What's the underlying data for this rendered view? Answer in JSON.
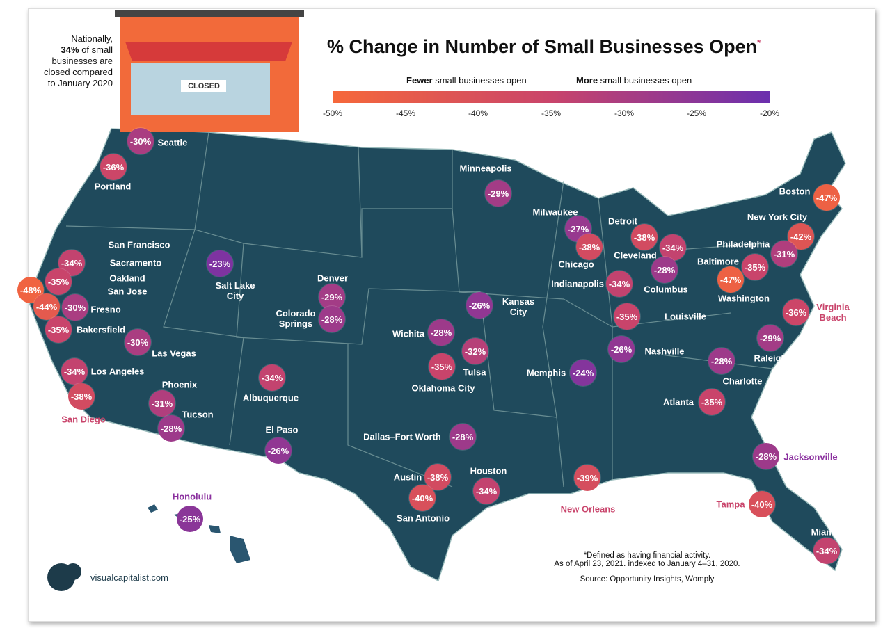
{
  "title": "% Change in Number of Small Businesses Open",
  "title_mark": "*",
  "note": {
    "line1": "Nationally,",
    "bold": "34%",
    "line2": "of small businesses are closed compared to January 2020"
  },
  "store_sign": "CLOSED",
  "legend": {
    "fewer_bold": "Fewer",
    "fewer_rest": " small businesses open",
    "more_bold": "More",
    "more_rest": " small businesses open",
    "ticks": [
      "-50%",
      "-45%",
      "-40%",
      "-35%",
      "-30%",
      "-25%",
      "-20%"
    ],
    "color_low": "#f6683a",
    "color_mid": "#c9446b",
    "color_high": "#6b2fae"
  },
  "cities": [
    {
      "name": "Seattle",
      "label": "-30%",
      "value": -30
    },
    {
      "name": "Portland",
      "label": "-36%",
      "value": -36
    },
    {
      "name": "Minneapolis",
      "label": "-29%",
      "value": -29
    },
    {
      "name": "Boston",
      "label": "-47%",
      "value": -47
    },
    {
      "name": "New York City",
      "label": "-42%",
      "value": -42
    },
    {
      "name": "Milwaukee",
      "label": "-27%",
      "value": -27
    },
    {
      "name": "Detroit",
      "label": "-38%",
      "value": -38
    },
    {
      "name": "Chicago",
      "label": "-38%",
      "value": -38
    },
    {
      "name": "Cleveland",
      "label": "-34%",
      "value": -34
    },
    {
      "name": "Philadelphia",
      "label": "-31%",
      "value": -31
    },
    {
      "name": "San Francisco",
      "label": "-48%",
      "value": -48
    },
    {
      "name": "Sacramento",
      "label": "-34%",
      "value": -34
    },
    {
      "name": "Oakland",
      "label": "-35%",
      "value": -35
    },
    {
      "name": "San Jose",
      "label": "-44%",
      "value": -44
    },
    {
      "name": "Fresno",
      "label": "-30%",
      "value": -30
    },
    {
      "name": "Bakersfield",
      "label": "-35%",
      "value": -35
    },
    {
      "name": "Salt Lake City",
      "label": "-23%",
      "value": -23
    },
    {
      "name": "Baltimore",
      "label": "-35%",
      "value": -35
    },
    {
      "name": "Columbus",
      "label": "-28%",
      "value": -28
    },
    {
      "name": "Washington",
      "label": "-47%",
      "value": -47
    },
    {
      "name": "Indianapolis",
      "label": "-34%",
      "value": -34
    },
    {
      "name": "Denver",
      "label": "-29%",
      "value": -29
    },
    {
      "name": "Colorado Springs",
      "label": "-28%",
      "value": -28
    },
    {
      "name": "Kansas City",
      "label": "-26%",
      "value": -26
    },
    {
      "name": "Virginia Beach",
      "label": "-36%",
      "value": -36
    },
    {
      "name": "Louisville",
      "label": "-35%",
      "value": -35
    },
    {
      "name": "Wichita",
      "label": "-28%",
      "value": -28
    },
    {
      "name": "Las Vegas",
      "label": "-30%",
      "value": -30
    },
    {
      "name": "Raleigh",
      "label": "-29%",
      "value": -29
    },
    {
      "name": "Nashville",
      "label": "-26%",
      "value": -26
    },
    {
      "name": "Tulsa",
      "label": "-32%",
      "value": -32
    },
    {
      "name": "Oklahoma City",
      "label": "-35%",
      "value": -35
    },
    {
      "name": "Los Angeles",
      "label": "-34%",
      "value": -34
    },
    {
      "name": "Charlotte",
      "label": "-28%",
      "value": -28
    },
    {
      "name": "Memphis",
      "label": "-24%",
      "value": -24
    },
    {
      "name": "Albuquerque",
      "label": "-34%",
      "value": -34
    },
    {
      "name": "Phoenix",
      "label": "-31%",
      "value": -31
    },
    {
      "name": "San Diego",
      "label": "-38%",
      "value": -38
    },
    {
      "name": "Atlanta",
      "label": "-35%",
      "value": -35
    },
    {
      "name": "Tucson",
      "label": "-28%",
      "value": -28
    },
    {
      "name": "El Paso",
      "label": "-26%",
      "value": -26
    },
    {
      "name": "Dallas–Fort Worth",
      "label": "-28%",
      "value": -28
    },
    {
      "name": "Jacksonville",
      "label": "-28%",
      "value": -28
    },
    {
      "name": "Houston",
      "label": "-34%",
      "value": -34
    },
    {
      "name": "Austin",
      "label": "-38%",
      "value": -38
    },
    {
      "name": "New Orleans",
      "label": "-39%",
      "value": -39
    },
    {
      "name": "San Antonio",
      "label": "-40%",
      "value": -40
    },
    {
      "name": "Tampa",
      "label": "-40%",
      "value": -40
    },
    {
      "name": "Honolulu",
      "label": "-25%",
      "value": -25
    },
    {
      "name": "Miami",
      "label": "-34%",
      "value": -34
    }
  ],
  "footnote": {
    "line1": "*Defined as having financial activity.",
    "line2": "As of April 23, 2021. indexed to January 4–31, 2020.",
    "source": "Source: Opportunity Insights, Womply"
  },
  "brand": "visualcapitalist.com",
  "map_color": "#1f4a5c"
}
